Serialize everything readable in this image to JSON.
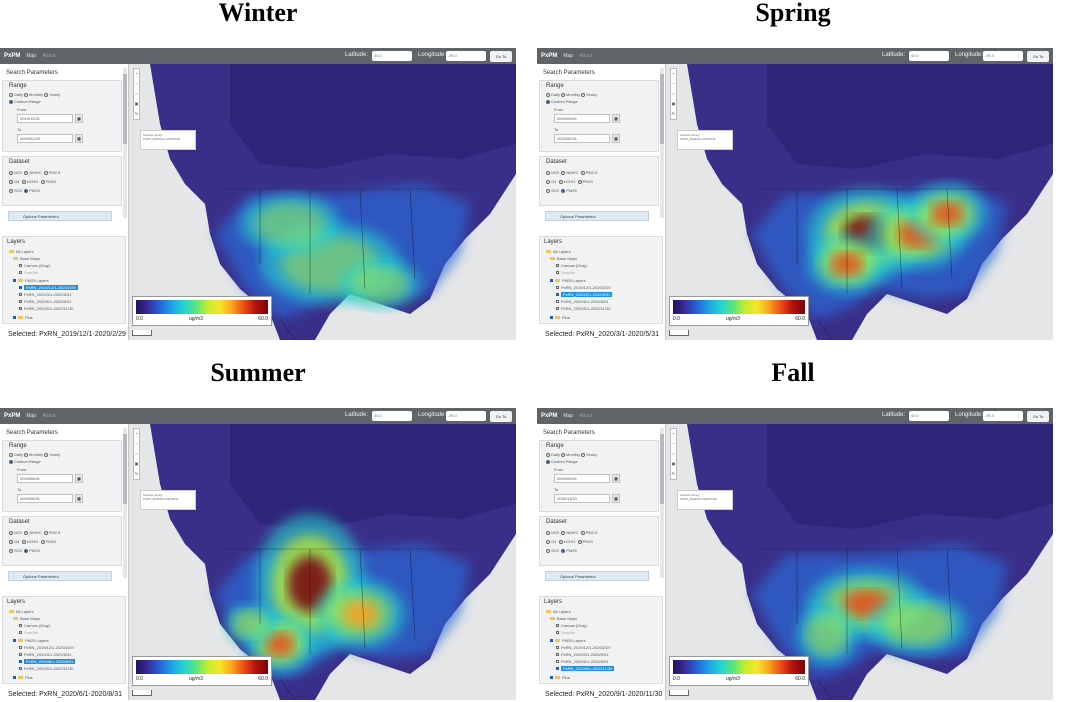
{
  "titles": [
    "Winter",
    "Spring",
    "Summer",
    "Fall"
  ],
  "app": {
    "brand": "PxPM",
    "tab_map": "Map",
    "tab_about": "About",
    "latitude_label": "Latitude",
    "latitude_value": "40.0",
    "longitude_label": "Longitude",
    "longitude_value": "-95.0",
    "go_button": "Go To"
  },
  "search": {
    "title": "Search Parameters",
    "range_label": "Range",
    "range_options": [
      "Daily",
      "Monthly",
      "Yearly"
    ],
    "range_custom": "Custom Range",
    "from_label": "From",
    "to_label": "To",
    "dataset_label": "Dataset",
    "dataset_options": [
      "NO2",
      "NMHC",
      "PM2.5",
      "O3",
      "HCHO",
      "PM10",
      "SO2",
      "PM25"
    ],
    "options_button": "Options Parameters"
  },
  "layers": {
    "title": "Layers",
    "all": "All Layers",
    "base": "Base Maps",
    "base_items": [
      "Canvas (Gray)",
      "Satellite"
    ],
    "data_group": "PM25 Layers",
    "other": "Plus"
  },
  "legend": {
    "min": "0.0",
    "unit": "ug/m3",
    "max": "60.0"
  },
  "panels": [
    {
      "from": "2019/12/01",
      "to": "2020/02/29",
      "items": [
        "PxRN_2019/12/1-2020/2/29",
        "PxRN_2020/3/1-2020/5/31",
        "PxRN_2020/6/1-2020/8/31",
        "PxRN_2020/9/1-2020/11/30"
      ],
      "active_index": 0,
      "selected": "Selected: PxRN_2019/12/1-2020/2/29"
    },
    {
      "from": "2020/03/01",
      "to": "2020/05/31",
      "items": [
        "PxRN_2019/12/1-2020/2/29",
        "PxRN_2020/3/1-2020/5/31",
        "PxRN_2020/6/1-2020/8/31",
        "PxRN_2020/9/1-2020/11/30"
      ],
      "active_index": 1,
      "selected": "Selected: PxRN_2020/3/1-2020/5/31"
    },
    {
      "from": "2020/06/01",
      "to": "2020/08/31",
      "items": [
        "PxRN_2019/12/1-2020/2/29",
        "PxRN_2020/3/1-2020/5/31",
        "PxRN_2020/6/1-2020/8/31",
        "PxRN_2020/9/1-2020/11/30"
      ],
      "active_index": 2,
      "selected": "Selected: PxRN_2020/6/1-2020/8/31"
    },
    {
      "from": "2020/09/01",
      "to": "2020/11/30",
      "items": [
        "PxRN_2019/12/1-2020/2/29",
        "PxRN_2020/3/1-2020/5/31",
        "PxRN_2020/6/1-2020/8/31",
        "PxRN_2020/9/1-2020/11/30"
      ],
      "active_index": 3,
      "selected": "Selected: PxRN_2020/9/1-2020/11/30"
    }
  ]
}
